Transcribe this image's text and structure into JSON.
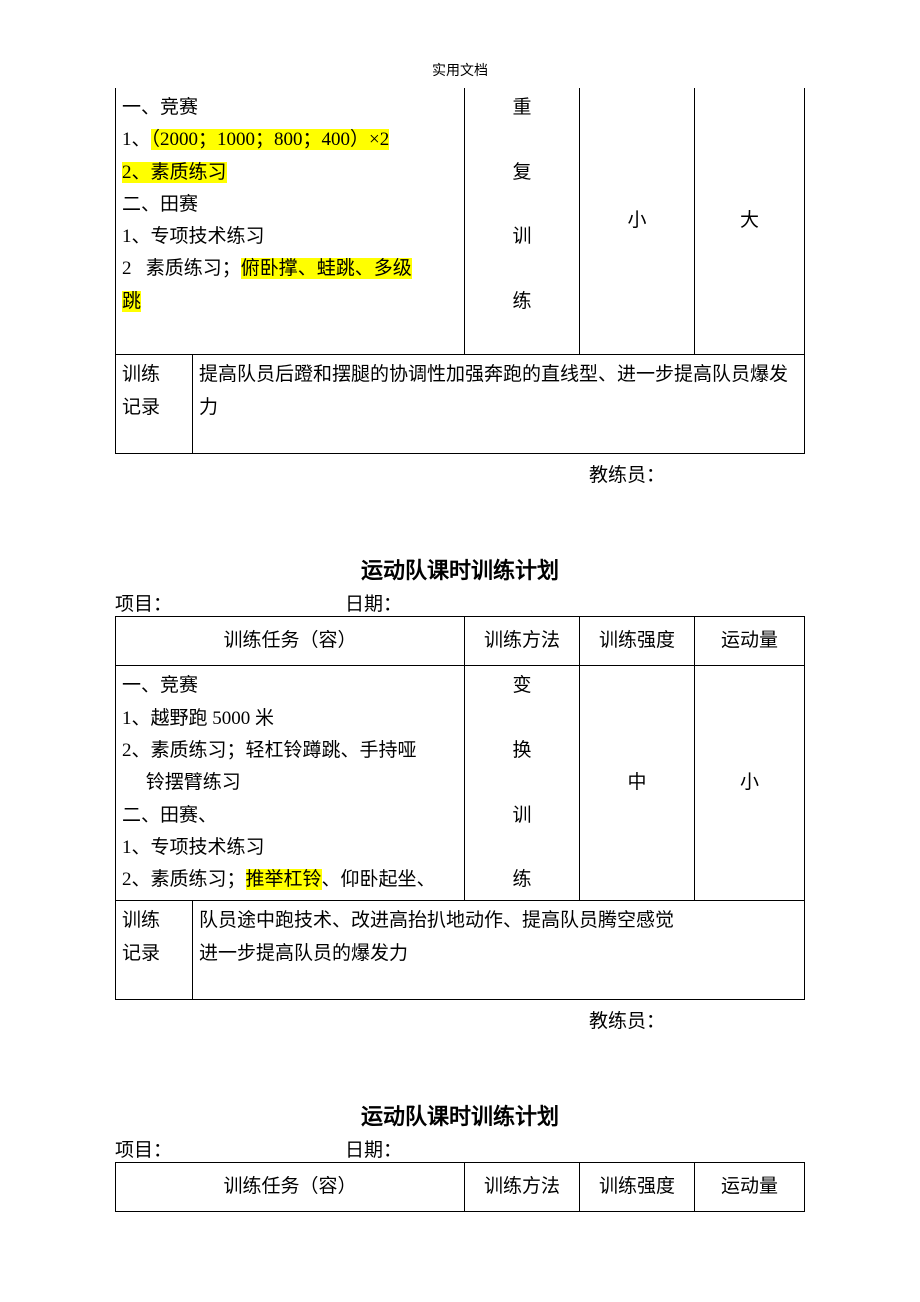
{
  "page_header": "实用文档",
  "plan1": {
    "task_lines": [
      {
        "parts": [
          {
            "t": "一、竞赛",
            "hl": false
          }
        ]
      },
      {
        "parts": [
          {
            "t": "1、",
            "hl": false
          },
          {
            "t": "（2000；1000；800；400）×2",
            "hl": true
          }
        ]
      },
      {
        "parts": [
          {
            "t": "2、素质练习",
            "hl": true
          }
        ]
      },
      {
        "parts": [
          {
            "t": "二、田赛",
            "hl": false
          }
        ]
      },
      {
        "parts": [
          {
            "t": "1、专项技术练习",
            "hl": false
          }
        ]
      },
      {
        "parts": [
          {
            "t": "2   素质练习；",
            "hl": false
          },
          {
            "t": "俯卧撑、蛙跳、多级",
            "hl": true
          }
        ]
      },
      {
        "parts": [
          {
            "t": "跳",
            "hl": true
          }
        ]
      },
      {
        "parts": [
          {
            "t": "",
            "hl": false
          }
        ]
      }
    ],
    "method_chars": [
      "重",
      "",
      "复",
      "",
      "训",
      "",
      "练",
      ""
    ],
    "intensity": "小",
    "amount": "大",
    "record_label": "训练记录",
    "record_text": "提高队员后蹬和摆腿的协调性加强奔跑的直线型、进一步提高队员爆发力",
    "coach_label": "教练员："
  },
  "plan2": {
    "title": "运动队课时训练计划",
    "project_label": "项目：",
    "date_label": "日期：",
    "header_task": "训练任务（容）",
    "header_method": "训练方法",
    "header_intensity": "训练强度",
    "header_amount": "运动量",
    "task_lines": [
      {
        "parts": [
          {
            "t": "一、竞赛",
            "hl": false
          }
        ]
      },
      {
        "parts": [
          {
            "t": "1、越野跑 5000 米",
            "hl": false
          }
        ]
      },
      {
        "parts": [
          {
            "t": "2、素质练习；轻杠铃蹲跳、手持哑",
            "hl": false
          }
        ]
      },
      {
        "parts": [
          {
            "t": "　 铃摆臂练习",
            "hl": false
          }
        ]
      },
      {
        "parts": [
          {
            "t": "二、田赛、",
            "hl": false
          }
        ]
      },
      {
        "parts": [
          {
            "t": "1、专项技术练习",
            "hl": false
          }
        ]
      },
      {
        "parts": [
          {
            "t": "2、素质练习；",
            "hl": false
          },
          {
            "t": "推举杠铃",
            "hl": true
          },
          {
            "t": "、仰卧起坐、",
            "hl": false
          }
        ]
      }
    ],
    "method_chars": [
      "变",
      "",
      "换",
      "",
      "训",
      "",
      "练"
    ],
    "intensity": "中",
    "amount": "小",
    "record_label": "训练记录",
    "record_text": "队员途中跑技术、改进高抬扒地动作、提高队员腾空感觉\n进一步提高队员的爆发力",
    "coach_label": "教练员："
  },
  "plan3": {
    "title": "运动队课时训练计划",
    "project_label": "项目：",
    "date_label": "日期：",
    "header_task": "训练任务（容）",
    "header_method": "训练方法",
    "header_intensity": "训练强度",
    "header_amount": "运动量"
  }
}
